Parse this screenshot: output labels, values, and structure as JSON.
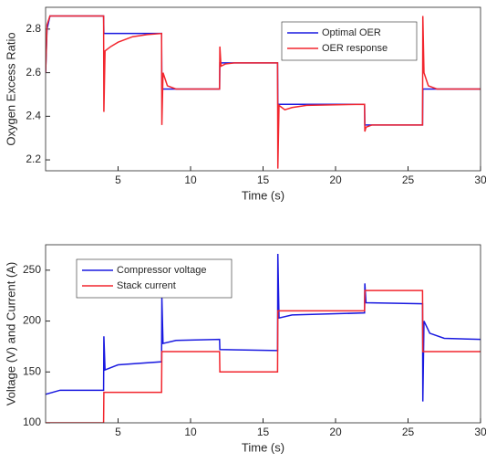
{
  "chart_data": [
    {
      "type": "line",
      "xlabel": "Time (s)",
      "ylabel": "Oxygen Excess Ratio",
      "xlim": [
        0,
        30
      ],
      "xticks": [
        5,
        10,
        15,
        20,
        25,
        30
      ],
      "ylim": [
        2.15,
        2.9
      ],
      "yticks": [
        2.2,
        2.4,
        2.6,
        2.8
      ],
      "legend": "upper right",
      "x": [
        0,
        0.1,
        0.3,
        4,
        4.02,
        4.1,
        4.5,
        5,
        6,
        7,
        8,
        8.02,
        8.1,
        8.4,
        9,
        12,
        12.02,
        12.1,
        12.4,
        13,
        16,
        16.02,
        16.1,
        16.5,
        17,
        18,
        22,
        22.02,
        22.1,
        22.5,
        26,
        26.02,
        26.1,
        26.4,
        27,
        30
      ],
      "series": [
        {
          "name": "Optimal OER",
          "color": "#1a1ae0",
          "values": [
            2.6,
            2.8,
            2.86,
            2.86,
            2.78,
            2.78,
            2.78,
            2.78,
            2.78,
            2.78,
            2.78,
            2.525,
            2.525,
            2.525,
            2.525,
            2.525,
            2.645,
            2.645,
            2.645,
            2.645,
            2.645,
            2.455,
            2.455,
            2.455,
            2.455,
            2.455,
            2.455,
            2.36,
            2.36,
            2.36,
            2.36,
            2.525,
            2.525,
            2.525,
            2.525,
            2.525
          ]
        },
        {
          "name": "OER response",
          "color": "#f2262e",
          "values": [
            2.6,
            2.82,
            2.86,
            2.86,
            2.42,
            2.7,
            2.72,
            2.74,
            2.765,
            2.775,
            2.78,
            2.36,
            2.6,
            2.54,
            2.525,
            2.525,
            2.72,
            2.63,
            2.64,
            2.645,
            2.645,
            2.16,
            2.45,
            2.43,
            2.44,
            2.45,
            2.455,
            2.33,
            2.35,
            2.36,
            2.36,
            2.86,
            2.6,
            2.54,
            2.525,
            2.525
          ]
        }
      ]
    },
    {
      "type": "line",
      "xlabel": "Time (s)",
      "ylabel": "Voltage (V) and Current (A)",
      "xlim": [
        0,
        30
      ],
      "xticks": [
        5,
        10,
        15,
        20,
        25,
        30
      ],
      "ylim": [
        100,
        275
      ],
      "yticks": [
        100,
        150,
        200,
        250
      ],
      "legend": "upper left",
      "x": [
        0,
        1,
        4,
        4.02,
        4.1,
        5,
        8,
        8.02,
        8.1,
        9,
        12,
        12.02,
        16,
        16.02,
        16.1,
        17,
        22,
        22.02,
        22.1,
        26,
        26.02,
        26.1,
        26.5,
        27.5,
        30
      ],
      "series": [
        {
          "name": "Compressor voltage",
          "color": "#1a1ae0",
          "values": [
            128,
            132,
            132,
            185,
            152,
            157,
            160,
            223,
            178,
            181,
            182,
            172,
            171,
            266,
            203,
            206,
            208,
            237,
            218,
            217,
            121,
            200,
            188,
            183,
            182
          ]
        },
        {
          "name": "Stack current",
          "color": "#f2262e",
          "values": [
            100,
            100,
            100,
            130,
            130,
            130,
            130,
            170,
            170,
            170,
            170,
            150,
            150,
            210,
            210,
            210,
            210,
            230,
            230,
            230,
            170,
            170,
            170,
            170,
            170
          ]
        }
      ]
    }
  ]
}
